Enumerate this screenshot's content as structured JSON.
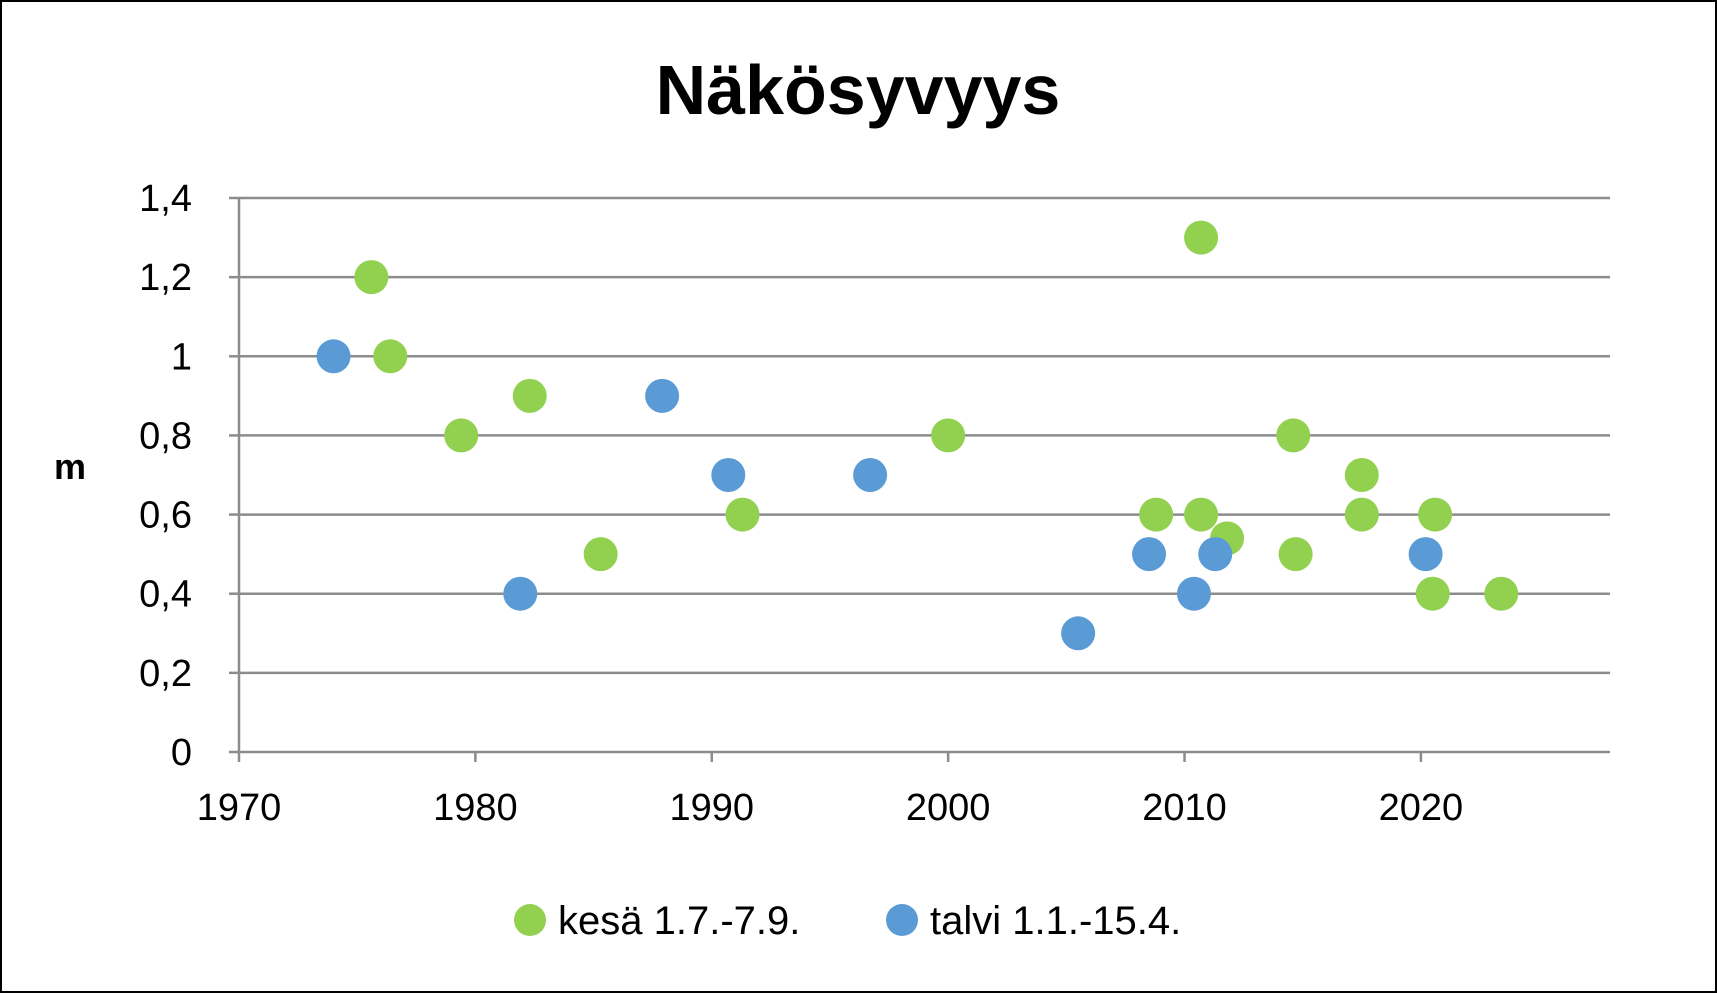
{
  "chart_data": {
    "type": "scatter",
    "title": "Näkösyvyys",
    "xlabel": "",
    "ylabel": "m",
    "xlim": [
      1970,
      2028
    ],
    "ylim": [
      0,
      1.4
    ],
    "xticks": [
      1970,
      1980,
      1990,
      2000,
      2010,
      2020
    ],
    "xtick_labels": [
      "1970",
      "1980",
      "1990",
      "2000",
      "2010",
      "2020"
    ],
    "yticks": [
      0,
      0.2,
      0.4,
      0.6,
      0.8,
      1,
      1.2,
      1.4
    ],
    "ytick_labels": [
      "0",
      "0,2",
      "0,4",
      "0,6",
      "0,8",
      "1",
      "1,2",
      "1,4"
    ],
    "grid": "horizontal",
    "legend_position": "bottom",
    "series": [
      {
        "name": "kesä 1.7.-7.9.",
        "color": "#92d050",
        "points": [
          {
            "x": 1975.6,
            "y": 1.2
          },
          {
            "x": 1976.4,
            "y": 1.0
          },
          {
            "x": 1979.4,
            "y": 0.8
          },
          {
            "x": 1982.3,
            "y": 0.9
          },
          {
            "x": 1985.3,
            "y": 0.5
          },
          {
            "x": 1991.3,
            "y": 0.6
          },
          {
            "x": 2000.0,
            "y": 0.8
          },
          {
            "x": 2008.8,
            "y": 0.6
          },
          {
            "x": 2010.7,
            "y": 1.3
          },
          {
            "x": 2010.7,
            "y": 0.6
          },
          {
            "x": 2011.8,
            "y": 0.54
          },
          {
            "x": 2014.6,
            "y": 0.8
          },
          {
            "x": 2014.7,
            "y": 0.5
          },
          {
            "x": 2017.5,
            "y": 0.7
          },
          {
            "x": 2017.5,
            "y": 0.6
          },
          {
            "x": 2020.5,
            "y": 0.4
          },
          {
            "x": 2020.6,
            "y": 0.6
          },
          {
            "x": 2023.4,
            "y": 0.4
          }
        ]
      },
      {
        "name": "talvi 1.1.-15.4.",
        "color": "#5b9bd5",
        "points": [
          {
            "x": 1974.0,
            "y": 1.0
          },
          {
            "x": 1981.9,
            "y": 0.4
          },
          {
            "x": 1987.9,
            "y": 0.9
          },
          {
            "x": 1990.7,
            "y": 0.7
          },
          {
            "x": 1996.7,
            "y": 0.7
          },
          {
            "x": 2005.5,
            "y": 0.3
          },
          {
            "x": 2008.5,
            "y": 0.5
          },
          {
            "x": 2010.4,
            "y": 0.4
          },
          {
            "x": 2011.3,
            "y": 0.5
          },
          {
            "x": 2020.2,
            "y": 0.5
          }
        ]
      }
    ]
  }
}
